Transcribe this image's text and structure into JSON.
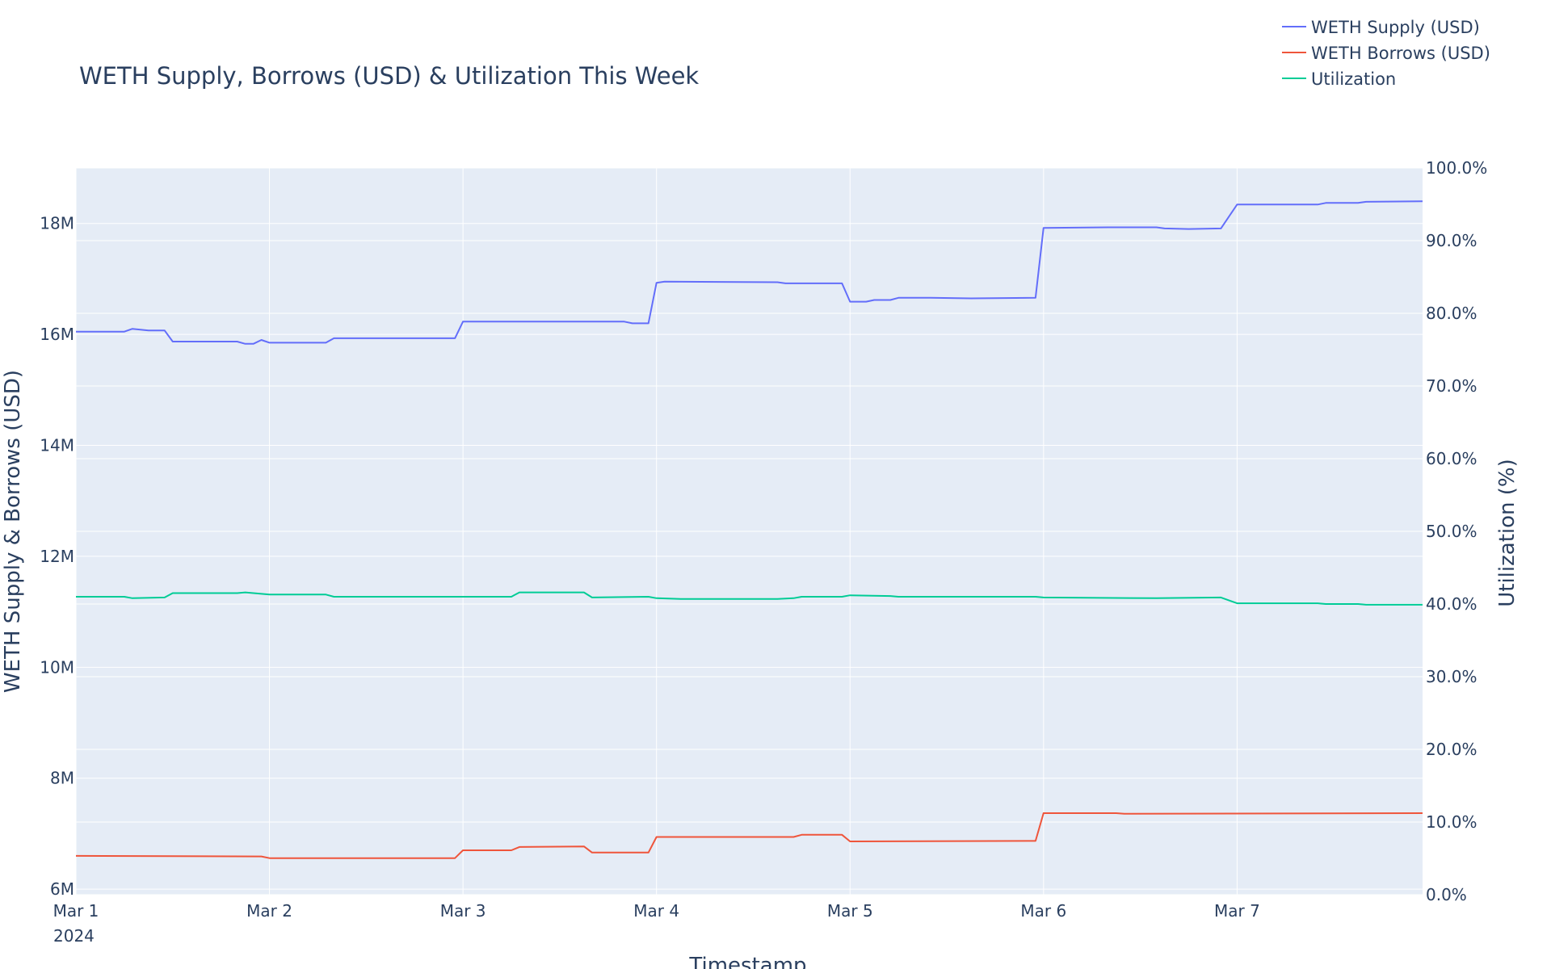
{
  "chart_data": {
    "type": "line",
    "title": "WETH Supply, Borrows (USD) & Utilization This Week",
    "xlabel": "Timestamp",
    "ylabel": "WETH Supply & Borrows (USD)",
    "y2label": "Utilization (%)",
    "x_ticks": [
      "Mar 1",
      "Mar 2",
      "Mar 3",
      "Mar 4",
      "Mar 5",
      "Mar 6",
      "Mar 7"
    ],
    "x_tick_year": "2024",
    "y_ticks": [
      "6M",
      "8M",
      "10M",
      "12M",
      "14M",
      "16M",
      "18M"
    ],
    "y2_ticks": [
      "0.0%",
      "10.0%",
      "20.0%",
      "30.0%",
      "40.0%",
      "50.0%",
      "60.0%",
      "70.0%",
      "80.0%",
      "90.0%",
      "100.0%"
    ],
    "xlim": [
      "2024-03-01",
      "2024-03-07 23:00"
    ],
    "ylim": [
      5.9,
      19.0
    ],
    "y2lim": [
      0,
      100
    ],
    "grid": true,
    "legend_position": "top-right",
    "plot_bg": "#e5ecf6",
    "series": [
      {
        "name": "WETH Supply (USD)",
        "axis": "y",
        "unit": "M USD",
        "color": "#636efa",
        "points": [
          [
            "2024-03-01 00:00",
            16.05
          ],
          [
            "2024-03-01 06:00",
            16.05
          ],
          [
            "2024-03-01 07:00",
            16.1
          ],
          [
            "2024-03-01 09:00",
            16.07
          ],
          [
            "2024-03-01 11:00",
            16.07
          ],
          [
            "2024-03-01 12:00",
            15.87
          ],
          [
            "2024-03-01 20:00",
            15.87
          ],
          [
            "2024-03-01 21:00",
            15.83
          ],
          [
            "2024-03-01 22:00",
            15.83
          ],
          [
            "2024-03-01 23:00",
            15.9
          ],
          [
            "2024-03-02 00:00",
            15.85
          ],
          [
            "2024-03-02 07:00",
            15.85
          ],
          [
            "2024-03-02 08:00",
            15.93
          ],
          [
            "2024-03-02 23:00",
            15.93
          ],
          [
            "2024-03-03 00:00",
            16.23
          ],
          [
            "2024-03-03 06:00",
            16.23
          ],
          [
            "2024-03-03 20:00",
            16.23
          ],
          [
            "2024-03-03 21:00",
            16.2
          ],
          [
            "2024-03-03 23:00",
            16.2
          ],
          [
            "2024-03-04 00:00",
            16.93
          ],
          [
            "2024-03-04 01:00",
            16.95
          ],
          [
            "2024-03-04 15:00",
            16.94
          ],
          [
            "2024-03-04 16:00",
            16.92
          ],
          [
            "2024-03-04 23:00",
            16.92
          ],
          [
            "2024-03-05 00:00",
            16.59
          ],
          [
            "2024-03-05 02:00",
            16.59
          ],
          [
            "2024-03-05 03:00",
            16.62
          ],
          [
            "2024-03-05 05:00",
            16.62
          ],
          [
            "2024-03-05 06:00",
            16.66
          ],
          [
            "2024-03-05 10:00",
            16.66
          ],
          [
            "2024-03-05 15:00",
            16.65
          ],
          [
            "2024-03-05 23:00",
            16.66
          ],
          [
            "2024-03-06 00:00",
            17.92
          ],
          [
            "2024-03-06 08:00",
            17.93
          ],
          [
            "2024-03-06 14:00",
            17.93
          ],
          [
            "2024-03-06 15:00",
            17.91
          ],
          [
            "2024-03-06 18:00",
            17.9
          ],
          [
            "2024-03-06 22:00",
            17.91
          ],
          [
            "2024-03-07 00:00",
            18.34
          ],
          [
            "2024-03-07 10:00",
            18.34
          ],
          [
            "2024-03-07 11:00",
            18.37
          ],
          [
            "2024-03-07 15:00",
            18.37
          ],
          [
            "2024-03-07 16:00",
            18.39
          ],
          [
            "2024-03-07 23:00",
            18.4
          ]
        ]
      },
      {
        "name": "WETH Borrows (USD)",
        "axis": "y",
        "unit": "M USD",
        "color": "#ef553b",
        "points": [
          [
            "2024-03-01 00:00",
            6.6
          ],
          [
            "2024-03-01 23:00",
            6.59
          ],
          [
            "2024-03-02 00:00",
            6.56
          ],
          [
            "2024-03-02 23:00",
            6.56
          ],
          [
            "2024-03-03 00:00",
            6.7
          ],
          [
            "2024-03-03 06:00",
            6.7
          ],
          [
            "2024-03-03 07:00",
            6.76
          ],
          [
            "2024-03-03 15:00",
            6.77
          ],
          [
            "2024-03-03 16:00",
            6.66
          ],
          [
            "2024-03-03 23:00",
            6.66
          ],
          [
            "2024-03-04 00:00",
            6.94
          ],
          [
            "2024-03-04 17:00",
            6.94
          ],
          [
            "2024-03-04 18:00",
            6.98
          ],
          [
            "2024-03-04 23:00",
            6.98
          ],
          [
            "2024-03-05 00:00",
            6.86
          ],
          [
            "2024-03-05 23:00",
            6.87
          ],
          [
            "2024-03-06 00:00",
            7.37
          ],
          [
            "2024-03-06 09:00",
            7.37
          ],
          [
            "2024-03-06 10:00",
            7.36
          ],
          [
            "2024-03-07 23:00",
            7.37
          ]
        ]
      },
      {
        "name": "Utilization",
        "axis": "y2",
        "unit": "%",
        "color": "#00cc96",
        "points": [
          [
            "2024-03-01 00:00",
            41.0
          ],
          [
            "2024-03-01 06:00",
            41.0
          ],
          [
            "2024-03-01 07:00",
            40.8
          ],
          [
            "2024-03-01 11:00",
            40.9
          ],
          [
            "2024-03-01 12:00",
            41.5
          ],
          [
            "2024-03-01 20:00",
            41.5
          ],
          [
            "2024-03-01 21:00",
            41.6
          ],
          [
            "2024-03-02 00:00",
            41.3
          ],
          [
            "2024-03-02 07:00",
            41.3
          ],
          [
            "2024-03-02 08:00",
            41.0
          ],
          [
            "2024-03-03 06:00",
            41.0
          ],
          [
            "2024-03-03 07:00",
            41.6
          ],
          [
            "2024-03-03 15:00",
            41.6
          ],
          [
            "2024-03-03 16:00",
            40.9
          ],
          [
            "2024-03-03 23:00",
            41.0
          ],
          [
            "2024-03-04 00:00",
            40.8
          ],
          [
            "2024-03-04 03:00",
            40.7
          ],
          [
            "2024-03-04 15:00",
            40.7
          ],
          [
            "2024-03-04 17:00",
            40.8
          ],
          [
            "2024-03-04 18:00",
            41.0
          ],
          [
            "2024-03-04 23:00",
            41.0
          ],
          [
            "2024-03-05 00:00",
            41.2
          ],
          [
            "2024-03-05 05:00",
            41.1
          ],
          [
            "2024-03-05 06:00",
            41.0
          ],
          [
            "2024-03-05 23:00",
            41.0
          ],
          [
            "2024-03-06 00:00",
            40.9
          ],
          [
            "2024-03-06 14:00",
            40.8
          ],
          [
            "2024-03-06 22:00",
            40.9
          ],
          [
            "2024-03-07 00:00",
            40.1
          ],
          [
            "2024-03-07 10:00",
            40.1
          ],
          [
            "2024-03-07 11:00",
            40.0
          ],
          [
            "2024-03-07 15:00",
            40.0
          ],
          [
            "2024-03-07 16:00",
            39.9
          ],
          [
            "2024-03-07 23:00",
            39.9
          ]
        ]
      }
    ]
  }
}
